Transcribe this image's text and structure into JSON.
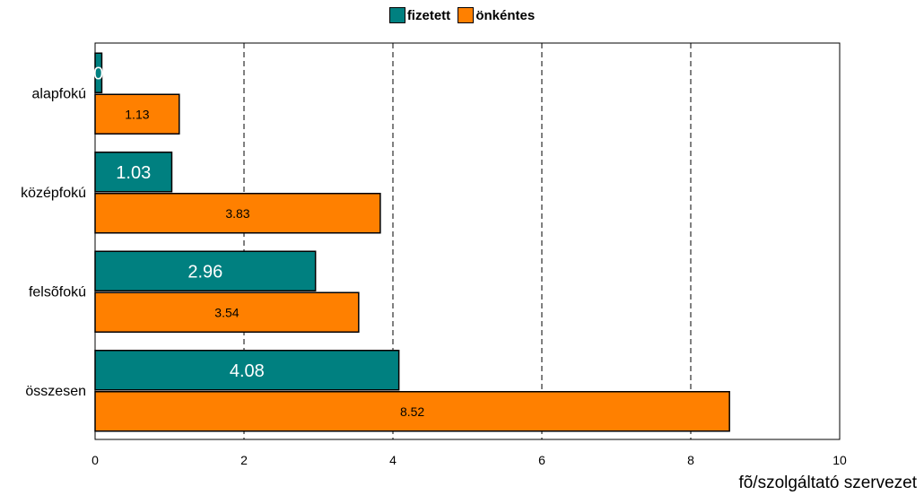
{
  "chart_data": {
    "type": "bar",
    "orientation": "horizontal",
    "categories": [
      "alapfokú",
      "középfokú",
      "felsõfokú",
      "összesen"
    ],
    "series": [
      {
        "name": "fizetett",
        "color": "#008080",
        "values": [
          0.09,
          1.03,
          2.96,
          4.08
        ],
        "labels": [
          "0",
          "1.03",
          "2.96",
          "4.08"
        ]
      },
      {
        "name": "önkéntes",
        "color": "#FF8000",
        "values": [
          1.13,
          3.83,
          3.54,
          8.52
        ],
        "labels": [
          "1.13",
          "3.83",
          "3.54",
          "8.52"
        ]
      }
    ],
    "xlim": [
      0,
      10
    ],
    "xticks": [
      "0",
      "2",
      "4",
      "6",
      "8",
      "10"
    ],
    "xlabel": "fõ/szolgáltató szervezet",
    "grid": "vertical dashed",
    "legend_position": "top"
  }
}
